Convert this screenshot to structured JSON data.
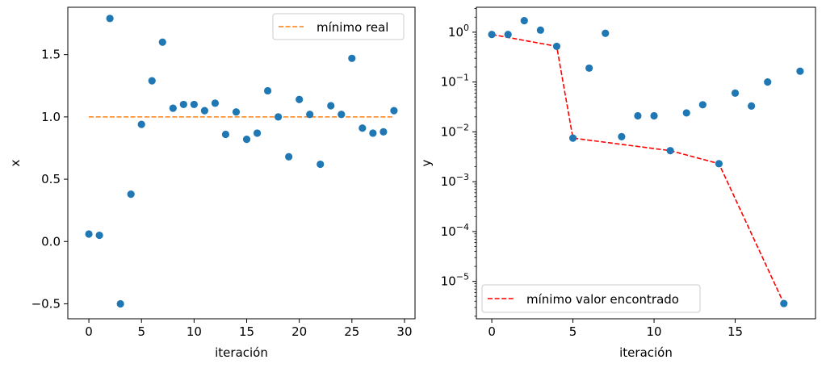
{
  "chart_data": [
    {
      "type": "scatter",
      "xlabel": "iteración",
      "ylabel": "x",
      "xlim": [
        -2,
        31
      ],
      "ylim": [
        -0.62,
        1.88
      ],
      "xticks": [
        0,
        5,
        10,
        15,
        20,
        25,
        30
      ],
      "xtick_labels": [
        "0",
        "5",
        "10",
        "15",
        "20",
        "25",
        "30"
      ],
      "yticks": [
        -0.5,
        0.0,
        0.5,
        1.0,
        1.5
      ],
      "ytick_labels": [
        "−0.5",
        "0.0",
        "0.5",
        "1.0",
        "1.5"
      ],
      "series": [
        {
          "kind": "scatter",
          "color": "#1f77b4",
          "x": [
            0,
            1,
            2,
            3,
            4,
            5,
            6,
            7,
            8,
            9,
            10,
            11,
            12,
            13,
            14,
            15,
            16,
            17,
            18,
            19,
            20,
            21,
            22,
            23,
            24,
            25,
            26,
            27,
            28,
            29
          ],
          "y": [
            0.06,
            0.05,
            1.79,
            -0.5,
            0.38,
            0.94,
            1.29,
            1.6,
            1.07,
            1.1,
            1.1,
            1.05,
            1.11,
            0.86,
            1.04,
            0.82,
            0.87,
            1.21,
            1.0,
            0.68,
            1.14,
            1.02,
            0.62,
            1.09,
            1.02,
            1.47,
            0.91,
            0.87,
            0.88,
            1.05
          ]
        },
        {
          "kind": "line",
          "name": "mínimo real",
          "color": "#ff7f0e",
          "dash": "dashed",
          "x": [
            0,
            29
          ],
          "y": [
            1.0,
            1.0
          ]
        }
      ],
      "legend": {
        "placement": "top-right",
        "entries": [
          "mínimo real"
        ]
      }
    },
    {
      "type": "scatter",
      "xlabel": "iteración",
      "ylabel": "y",
      "yscale": "log",
      "xlim": [
        -0.95,
        19.95
      ],
      "ylim_log10": [
        -5.75,
        0.5
      ],
      "xticks": [
        0,
        5,
        10,
        15
      ],
      "xtick_labels": [
        "0",
        "5",
        "10",
        "15"
      ],
      "yticks_log10": [
        0,
        -1,
        -2,
        -3,
        -4,
        -5
      ],
      "ytick_exponents": [
        "0",
        "−1",
        "−2",
        "−3",
        "−4",
        "−5"
      ],
      "series": [
        {
          "kind": "scatter",
          "color": "#1f77b4",
          "x": [
            0,
            1,
            2,
            3,
            4,
            5,
            6,
            7,
            8,
            9,
            10,
            11,
            12,
            13,
            14,
            15,
            16,
            17,
            18,
            19
          ],
          "y": [
            0.9,
            0.9,
            1.7,
            1.1,
            0.52,
            0.0075,
            0.19,
            0.95,
            0.008,
            0.021,
            0.021,
            0.0042,
            0.024,
            0.035,
            0.0023,
            0.06,
            0.033,
            0.1,
            3.6e-06,
            0.165
          ]
        },
        {
          "kind": "line",
          "name": "mínimo valor encontrado",
          "color": "#ff0000",
          "dash": "dashed",
          "x": [
            0,
            4,
            5,
            11,
            14,
            18
          ],
          "y": [
            0.9,
            0.52,
            0.0075,
            0.0042,
            0.0023,
            3.6e-06
          ]
        }
      ],
      "legend": {
        "placement": "bottom-left",
        "entries": [
          "mínimo valor encontrado"
        ]
      }
    }
  ]
}
